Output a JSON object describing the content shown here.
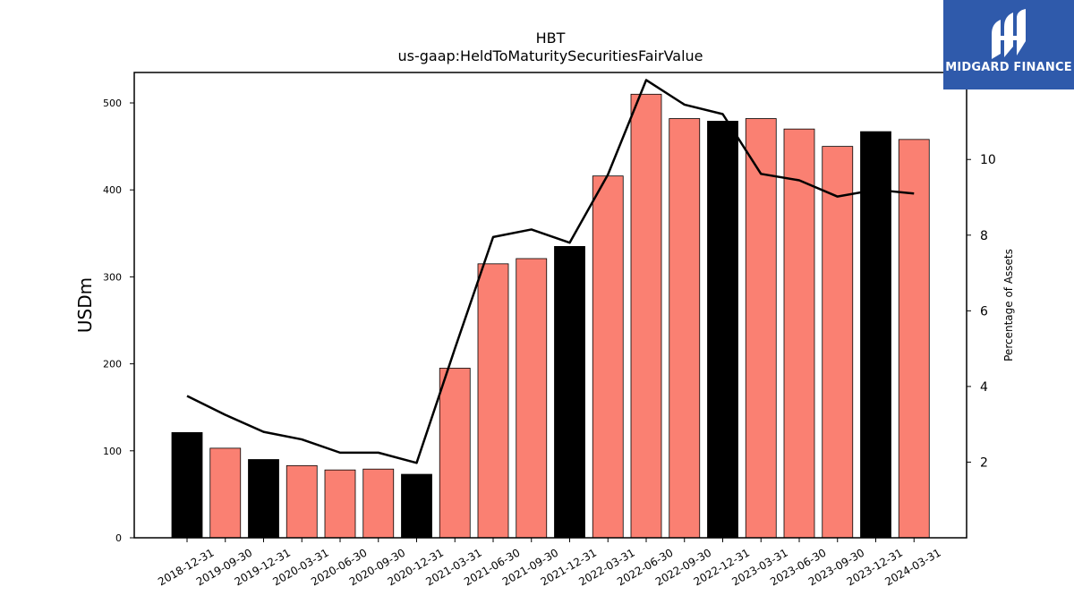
{
  "chart_data": {
    "type": "bar",
    "title": "HBT",
    "subtitle": "us-gaap:HeldToMaturitySecuritiesFairValue",
    "ylabel": "USDm",
    "y2label": "Percentage of Assets",
    "ylim": [
      0,
      535
    ],
    "y2lim": [
      0,
      12.3
    ],
    "yticks": [
      0,
      100,
      200,
      300,
      400,
      500
    ],
    "y2ticks": [
      2,
      4,
      6,
      8,
      10,
      12
    ],
    "categories": [
      "2018-12-31",
      "2019-09-30",
      "2019-12-31",
      "2020-03-31",
      "2020-06-30",
      "2020-09-30",
      "2020-12-31",
      "2021-03-31",
      "2021-06-30",
      "2021-09-30",
      "2021-12-31",
      "2022-03-31",
      "2022-06-30",
      "2022-09-30",
      "2022-12-31",
      "2023-03-31",
      "2023-06-30",
      "2023-09-30",
      "2023-12-31",
      "2024-03-31"
    ],
    "series": [
      {
        "kind": "bar",
        "values": [
          121,
          103,
          90,
          83,
          78,
          79,
          73,
          195,
          315,
          321,
          335,
          416,
          510,
          482,
          479,
          482,
          470,
          450,
          467,
          458
        ],
        "year_end_highlight": [
          true,
          false,
          true,
          false,
          false,
          false,
          true,
          false,
          false,
          false,
          true,
          false,
          false,
          false,
          true,
          false,
          false,
          false,
          true,
          false
        ]
      },
      {
        "kind": "line",
        "axis": "right",
        "values": [
          3.75,
          3.25,
          2.8,
          2.6,
          2.25,
          2.25,
          1.98,
          5.0,
          7.95,
          8.15,
          7.8,
          9.6,
          12.1,
          11.45,
          11.2,
          9.62,
          9.45,
          9.02,
          9.2,
          9.1
        ]
      }
    ],
    "colors": {
      "bar": "#fa8072",
      "bar_highlight": "#000000",
      "line": "#000000"
    },
    "grid": false
  },
  "logo": {
    "text": "MIDGARD FINANCE"
  }
}
